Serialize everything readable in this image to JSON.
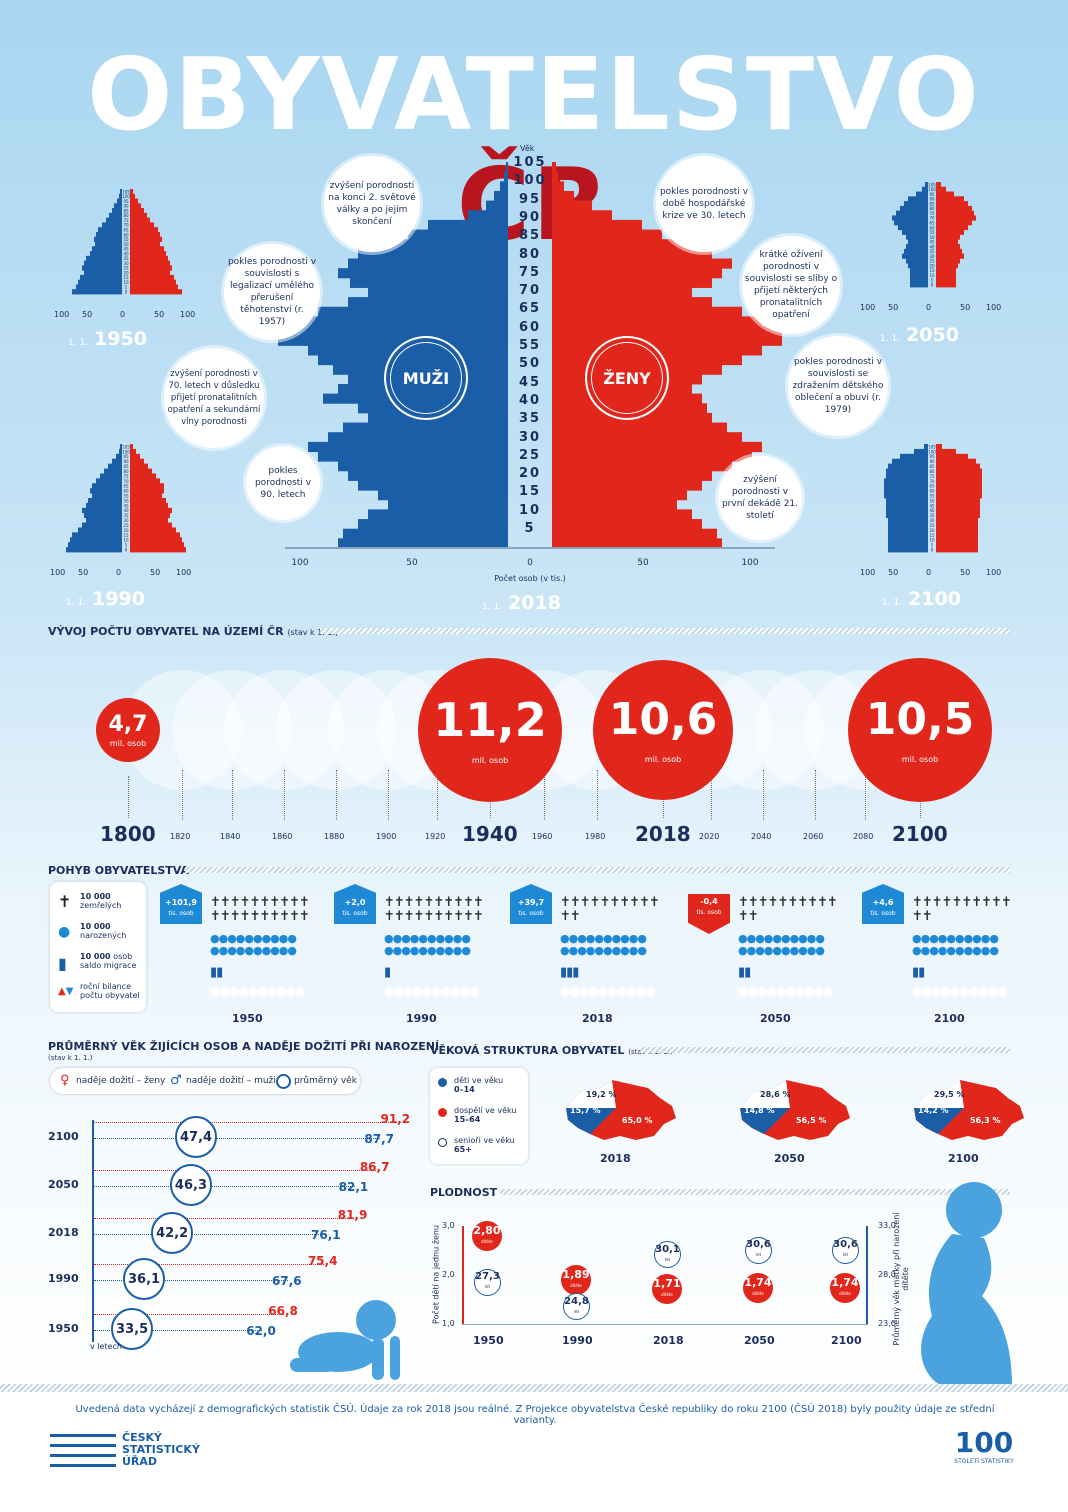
{
  "title": {
    "main": "OBYVATELSTVO",
    "accent": "ČR"
  },
  "colors": {
    "male": "#1b5ea8",
    "female": "#e1261c",
    "navy": "#1b2d5c"
  },
  "pyramid_main": {
    "vek_label": "Věk",
    "age_ticks": [
      "105",
      "100",
      "95",
      "90",
      "85",
      "80",
      "75",
      "70",
      "65",
      "60",
      "55",
      "50",
      "45",
      "40",
      "35",
      "30",
      "25",
      "20",
      "15",
      "10",
      "5"
    ],
    "x_ticks": [
      "100",
      "50",
      "0",
      "50",
      "100"
    ],
    "x_label": "Počet osob (v tis.)",
    "male_label": "MUŽI",
    "female_label": "ŽENY",
    "date_prefix": "1. 1.",
    "year": "2018"
  },
  "annotations": [
    "zvýšení porodnosti na konci 2. světové války a po jejím skončení",
    "pokles porodnosti v souvislosti s legalizací umělého přerušení těhotenství (r. 1957)",
    "zvýšení porodnosti v 70. letech v důsledku přijetí pronatalitních opatření a sekundární vlny porodnosti",
    "pokles porodnosti v 90. letech",
    "pokles porodnosti v době hospodářské krize ve 30. letech",
    "krátké oživení porodnosti v souvislosti se sliby o přijetí některých pronatalitních opatření",
    "pokles porodnosti v souvislosti se zdražením dětského oblečení a obuvi (r. 1979)",
    "zvýšení porodnosti v první dekádě 21. století"
  ],
  "small_pyramids": [
    {
      "prefix": "1. 1.",
      "year": "1950",
      "x_ticks": [
        "100",
        "50",
        "0",
        "50",
        "100"
      ]
    },
    {
      "prefix": "1. 1.",
      "year": "2050",
      "x_ticks": [
        "100",
        "50",
        "0",
        "50",
        "100"
      ]
    },
    {
      "prefix": "1. 1.",
      "year": "1990",
      "x_ticks": [
        "100",
        "50",
        "0",
        "50",
        "100"
      ]
    },
    {
      "prefix": "1. 1.",
      "year": "2100",
      "x_ticks": [
        "100",
        "50",
        "0",
        "50",
        "100"
      ]
    }
  ],
  "small_age_ticks": [
    "105",
    "100",
    "95",
    "90",
    "85",
    "80",
    "75",
    "70",
    "65",
    "60",
    "55",
    "50",
    "45",
    "40",
    "35",
    "30",
    "25",
    "20",
    "15",
    "10",
    "5",
    "0"
  ],
  "population": {
    "title": "VÝVOJ POČTU OBYVATEL NA ÚZEMÍ ČR",
    "subtitle": "(stav k 1. 1.)",
    "unit": "mil. osob",
    "highlights": [
      {
        "year": "1800",
        "value": "4,7"
      },
      {
        "year": "1940",
        "value": "11,2"
      },
      {
        "year": "2018",
        "value": "10,6"
      },
      {
        "year": "2100",
        "value": "10,5"
      }
    ],
    "years": [
      "1800",
      "1820",
      "1840",
      "1860",
      "1880",
      "1900",
      "1920",
      "1940",
      "1960",
      "1980",
      "2018",
      "2020",
      "2040",
      "2060",
      "2080",
      "2100"
    ]
  },
  "movement": {
    "title": "POHYB OBYVATELSTVA",
    "legend": [
      {
        "bold": "10 000",
        "text": "zemřelých"
      },
      {
        "bold": "10 000",
        "text": "narozených"
      },
      {
        "bold": "10 000",
        "text": "osob saldo migrace"
      },
      {
        "bold": "",
        "text": "roční bilance počtu obyvatel"
      }
    ],
    "balance_unit": "tis. osob",
    "columns": [
      {
        "year": "1950",
        "balance": "+101,9",
        "dir": "up"
      },
      {
        "year": "1990",
        "balance": "+2,0",
        "dir": "up"
      },
      {
        "year": "2018",
        "balance": "+39,7",
        "dir": "up"
      },
      {
        "year": "2050",
        "balance": "-0,4",
        "dir": "down"
      },
      {
        "year": "2100",
        "balance": "+4,6",
        "dir": "up"
      }
    ]
  },
  "age_life": {
    "title": "PRŮMĚRNÝ VĚK ŽIJÍCÍCH OSOB A NADĚJE DOŽITÍ PŘI NAROZENÍ",
    "subtitle": "(stav k 1. 1.)",
    "legend": [
      "naděje dožití – ženy",
      "naděje dožití – muži",
      "průměrný věk"
    ],
    "unit_label": "v letech"
  },
  "structure": {
    "title": "VĚKOVÁ STRUKTURA OBYVATEL",
    "subtitle": "(stav k 1. 1.)",
    "legend": [
      {
        "label1": "děti ve věku",
        "label2": "0–14"
      },
      {
        "label1": "dospělí ve věku",
        "label2": "15–64"
      },
      {
        "label1": "senioři ve věku",
        "label2": "65+"
      }
    ]
  },
  "fertility": {
    "title": "PLODNOST",
    "left_axis": "Počet dětí na jednu ženu",
    "right_axis": "Průměrný věk matky při narození dítěte",
    "left_ticks": [
      "3,0",
      "2,0",
      "1,0"
    ],
    "right_ticks": [
      "33,0",
      "28,0",
      "23,0"
    ],
    "child_unit": "dítěte",
    "age_unit": "let"
  },
  "footer": {
    "note": "Uvedená data vycházejí z demografických statistik ČSÚ. Údaje za rok 2018 jsou reálné. Z Projekce obyvatelstva České republiky do roku 2100 (ČSÚ 2018) byly použity údaje ze střední varianty.",
    "logo_line1": "ČESKÝ",
    "logo_line2": "STATISTICKÝ",
    "logo_line3": "ÚŘAD",
    "badge": "100",
    "badge_text": "STOLETÍ STATISTIKY"
  },
  "chart_data": [
    {
      "type": "bar",
      "title": "VÝVOJ POČTU OBYVATEL NA ÚZEMÍ ČR",
      "categories": [
        "1800",
        "1940",
        "2018",
        "2100"
      ],
      "values": [
        4.7,
        11.2,
        10.6,
        10.5
      ],
      "ylabel": "mil. osob"
    },
    {
      "type": "bar",
      "title": "POHYB OBYVATELSTVA",
      "categories": [
        "1950",
        "1990",
        "2018",
        "2050",
        "2100"
      ],
      "values": [
        101.9,
        2.0,
        39.7,
        -0.4,
        4.6
      ],
      "ylabel": "tis. osob"
    },
    {
      "type": "scatter",
      "title": "PRŮMĚRNÝ VĚK ŽIJÍCÍCH OSOB A NADĚJE DOŽITÍ PŘI NAROZENÍ",
      "categories": [
        "2100",
        "2050",
        "2018",
        "1990",
        "1950"
      ],
      "series": [
        {
          "name": "naděje dožití – ženy",
          "values": [
            "91,2",
            "86,7",
            "81,9",
            "75,4",
            "66,8"
          ]
        },
        {
          "name": "naděje dožití – muži",
          "values": [
            "87,7",
            "82,1",
            "76,1",
            "67,6",
            "62,0"
          ]
        },
        {
          "name": "průměrný věk",
          "values": [
            "47,4",
            "46,3",
            "42,2",
            "36,1",
            "33,5"
          ]
        }
      ],
      "xlabel": "v letech"
    },
    {
      "type": "pie",
      "title": "VĚKOVÁ STRUKTURA OBYVATEL",
      "categories": [
        "2018",
        "2050",
        "2100"
      ],
      "series": [
        {
          "name": "děti ve věku 0–14",
          "values": [
            "15,7 %",
            "14,8 %",
            "14,2 %"
          ]
        },
        {
          "name": "dospělí ve věku 15–64",
          "values": [
            "65,0 %",
            "56,5 %",
            "56,3 %"
          ]
        },
        {
          "name": "senioři ve věku 65+",
          "values": [
            "19,2 %",
            "28,6 %",
            "29,5 %"
          ]
        }
      ]
    },
    {
      "type": "scatter",
      "title": "PLODNOST",
      "categories": [
        "1950",
        "1990",
        "2018",
        "2050",
        "2100"
      ],
      "series": [
        {
          "name": "Počet dětí na jednu ženu",
          "values": [
            "2,80",
            "1,89",
            "1,71",
            "1,74",
            "1,74"
          ]
        },
        {
          "name": "Průměrný věk matky při narození dítěte",
          "values": [
            "27,3",
            "24,8",
            "30,1",
            "30,6",
            "30,6"
          ]
        }
      ],
      "ylim_left": [
        1.0,
        3.0
      ],
      "ylim_right": [
        23.0,
        33.0
      ]
    }
  ]
}
